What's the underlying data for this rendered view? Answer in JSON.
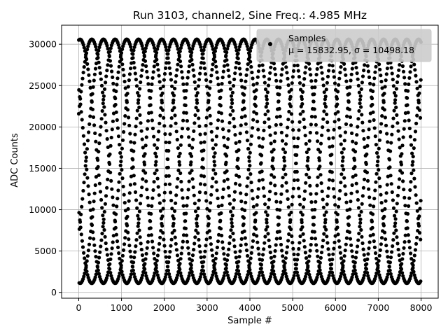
{
  "chart_data": {
    "type": "scatter",
    "title": "Run 3103, channel2, Sine Freq.: 4.985 MHz",
    "xlabel": "Sample #",
    "ylabel": "ADC Counts",
    "xlim": [
      -400,
      8400
    ],
    "ylim": [
      -700,
      32300
    ],
    "xticks": [
      0,
      1000,
      2000,
      3000,
      4000,
      5000,
      6000,
      7000,
      8000
    ],
    "yticks": [
      0,
      5000,
      10000,
      15000,
      20000,
      25000,
      30000
    ],
    "xtick_labels": [
      "0",
      "1000",
      "2000",
      "3000",
      "4000",
      "5000",
      "6000",
      "7000",
      "8000"
    ],
    "ytick_labels": [
      "0",
      "5000",
      "10000",
      "15000",
      "20000",
      "25000",
      "30000"
    ],
    "grid": true,
    "legend": {
      "placement": "top-right",
      "entries": [
        "Samples",
        "μ = 15832.95, σ = 10498.18"
      ]
    },
    "series": [
      {
        "name": "Samples",
        "color": "#000000",
        "marker": "circle",
        "n_points": 8000,
        "x_range": [
          0,
          7999
        ],
        "y_min": 1100,
        "y_max": 30600,
        "mean": 15832.95,
        "std": 10498.18,
        "note_waveform": "sinusoid sampled, amplitude ~14750 around ~15850"
      }
    ]
  }
}
